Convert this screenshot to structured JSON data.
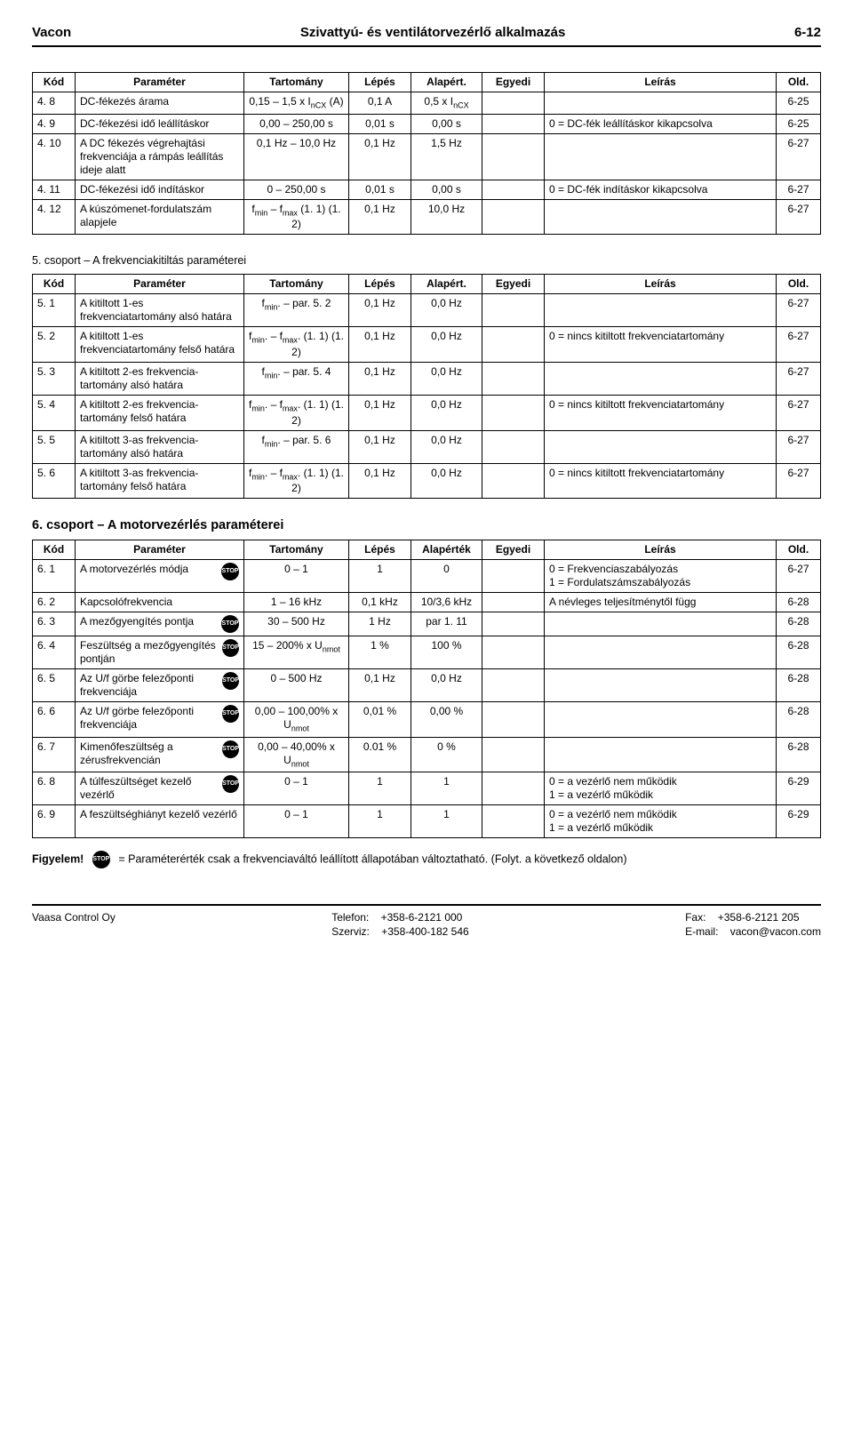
{
  "header": {
    "left": "Vacon",
    "center": "Szivattyú- és ventilátorvezérlő alkalmazás",
    "right": "6-12"
  },
  "t1": {
    "cols": [
      "Kód",
      "Paraméter",
      "Tartomány",
      "Lépés",
      "Alapért.",
      "Egyedi",
      "Leírás",
      "Old."
    ],
    "rows": [
      {
        "k": "4. 8",
        "p": "DC-fékezés árama",
        "t": "0,15 – 1,5 x InCX (A)",
        "l": "0,1 A",
        "a": "0,5 x InCX",
        "e": "",
        "d": "",
        "o": "6-25"
      },
      {
        "k": "4. 9",
        "p": "DC-fékezési idő leállításkor",
        "t": "0,00 – 250,00 s",
        "l": "0,01 s",
        "a": "0,00 s",
        "e": "",
        "d": "0 = DC-fék leállításkor kikapcsolva",
        "o": "6-25"
      },
      {
        "k": "4. 10",
        "p": "A DC fékezés végrehajtási frekvenciája a rámpás leállítás ideje alatt",
        "t": "0,1 Hz – 10,0 Hz",
        "l": "0,1 Hz",
        "a": "1,5 Hz",
        "e": "",
        "d": "",
        "o": "6-27"
      },
      {
        "k": "4. 11",
        "p": "DC-fékezési idő indításkor",
        "t": "0 – 250,00 s",
        "l": "0,01 s",
        "a": "0,00 s",
        "e": "",
        "d": "0 = DC-fék indításkor kikapcsolva",
        "o": "6-27"
      },
      {
        "k": "4. 12",
        "p": "A kúszómenet-fordulatszám alapjele",
        "t": "fmin – fmax (1. 1) (1. 2)",
        "l": "0,1 Hz",
        "a": "10,0 Hz",
        "e": "",
        "d": "",
        "o": "6-27"
      }
    ]
  },
  "s5_title": "5. csoport – A frekvenciakitiltás paraméterei",
  "t2": {
    "cols": [
      "Kód",
      "Paraméter",
      "Tartomány",
      "Lépés",
      "Alapért.",
      "Egyedi",
      "Leírás",
      "Old."
    ],
    "rows": [
      {
        "k": "5. 1",
        "p": "A kitiltott 1-es frekvenciatartomány alsó határa",
        "t": "fmin. – par. 5. 2",
        "l": "0,1 Hz",
        "a": "0,0 Hz",
        "e": "",
        "d": "",
        "o": "6-27"
      },
      {
        "k": "5. 2",
        "p": "A kitiltott 1-es frekvenciatartomány felső határa",
        "t": "fmin. – fmax. (1. 1) (1. 2)",
        "l": "0,1 Hz",
        "a": "0,0 Hz",
        "e": "",
        "d": "0 = nincs kitiltott frekvenciatartomány",
        "o": "6-27"
      },
      {
        "k": "5. 3",
        "p": "A kitiltott 2-es frekvencia-tartomány alsó határa",
        "t": "fmin. – par. 5. 4",
        "l": "0,1 Hz",
        "a": "0,0 Hz",
        "e": "",
        "d": "",
        "o": "6-27"
      },
      {
        "k": "5. 4",
        "p": "A kitiltott 2-es frekvencia-tartomány felső határa",
        "t": "fmin. – fmax. (1. 1) (1. 2)",
        "l": "0,1 Hz",
        "a": "0,0 Hz",
        "e": "",
        "d": "0 = nincs kitiltott frekvenciatartomány",
        "o": "6-27"
      },
      {
        "k": "5. 5",
        "p": "A kitiltott 3-as frekvencia-tartomány alsó határa",
        "t": "fmin. – par. 5. 6",
        "l": "0,1 Hz",
        "a": "0,0 Hz",
        "e": "",
        "d": "",
        "o": "6-27"
      },
      {
        "k": "5. 6",
        "p": "A kitiltott 3-as frekvencia-tartomány felső határa",
        "t": "fmin. – fmax. (1. 1) (1. 2)",
        "l": "0,1 Hz",
        "a": "0,0 Hz",
        "e": "",
        "d": "0 = nincs kitiltott frekvenciatartomány",
        "o": "6-27"
      }
    ]
  },
  "s6_title": "6. csoport – A motorvezérlés paraméterei",
  "t3": {
    "cols": [
      "Kód",
      "Paraméter",
      "Tartomány",
      "Lépés",
      "Alapérték",
      "Egyedi",
      "Leírás",
      "Old."
    ],
    "rows": [
      {
        "k": "6. 1",
        "p": "A motorvezérlés módja",
        "stop": true,
        "t": "0 – 1",
        "l": "1",
        "a": "0",
        "e": "",
        "d": "0 = Frekvenciaszabályozás\n1 = Fordulatszámszabályozás",
        "o": "6-27"
      },
      {
        "k": "6. 2",
        "p": "Kapcsolófrekvencia",
        "stop": false,
        "t": "1 – 16 kHz",
        "l": "0,1 kHz",
        "a": "10/3,6 kHz",
        "e": "",
        "d": "A névleges teljesítménytől függ",
        "o": "6-28"
      },
      {
        "k": "6. 3",
        "p": "A mezőgyengítés pontja",
        "stop": true,
        "t": "30 – 500 Hz",
        "l": "1 Hz",
        "a": "par 1. 11",
        "e": "",
        "d": "",
        "o": "6-28"
      },
      {
        "k": "6. 4",
        "p": "Feszültség a mezőgyengítés pontján",
        "stop": true,
        "t": "15 – 200% x Unmot",
        "l": "1 %",
        "a": "100 %",
        "e": "",
        "d": "",
        "o": "6-28"
      },
      {
        "k": "6. 5",
        "p": "Az U/f görbe felezőponti frekvenciája",
        "stop": true,
        "t": "0 – 500 Hz",
        "l": "0,1 Hz",
        "a": "0,0 Hz",
        "e": "",
        "d": "",
        "o": "6-28"
      },
      {
        "k": "6. 6",
        "p": "Az U/f görbe felezőponti frekvenciája",
        "stop": true,
        "t": "0,00 – 100,00% x Unmot",
        "l": "0,01 %",
        "a": "0,00 %",
        "e": "",
        "d": "",
        "o": "6-28"
      },
      {
        "k": "6. 7",
        "p": "Kimenőfeszültség a zérusfrekvencián",
        "stop": true,
        "t": "0,00 – 40,00% x Unmot",
        "l": "0.01 %",
        "a": "0 %",
        "e": "",
        "d": "",
        "o": "6-28"
      },
      {
        "k": "6. 8",
        "p": "A túlfeszültséget kezelő vezérlő",
        "stop": true,
        "t": "0 – 1",
        "l": "1",
        "a": "1",
        "e": "",
        "d": "0 = a vezérlő nem működik\n1 = a vezérlő működik",
        "o": "6-29"
      },
      {
        "k": "6. 9",
        "p": "A feszültséghiányt kezelő vezérlő",
        "stop": false,
        "t": "0 – 1",
        "l": "1",
        "a": "1",
        "e": "",
        "d": "0 = a vezérlő nem működik\n1 = a vezérlő működik",
        "o": "6-29"
      }
    ]
  },
  "note_label": "Figyelem!",
  "note_text": "= Paraméterérték csak a frekvenciaváltó leállított állapotában változtatható. (Folyt. a következő oldalon)",
  "stop_text": "STOP",
  "footer": {
    "company": "Vaasa Control Oy",
    "tel_label": "Telefon:",
    "tel": "+358-6-2121 000",
    "svc_label": "Szerviz:",
    "svc": "+358-400-182 546",
    "fax_label": "Fax:",
    "fax": "+358-6-2121 205",
    "email_label": "E-mail:",
    "email": "vacon@vacon.com"
  },
  "colw": {
    "kod": "48px",
    "param": "190px",
    "range": "118px",
    "step": "70px",
    "def": "80px",
    "custom": "70px",
    "desc": "auto",
    "page": "50px"
  }
}
